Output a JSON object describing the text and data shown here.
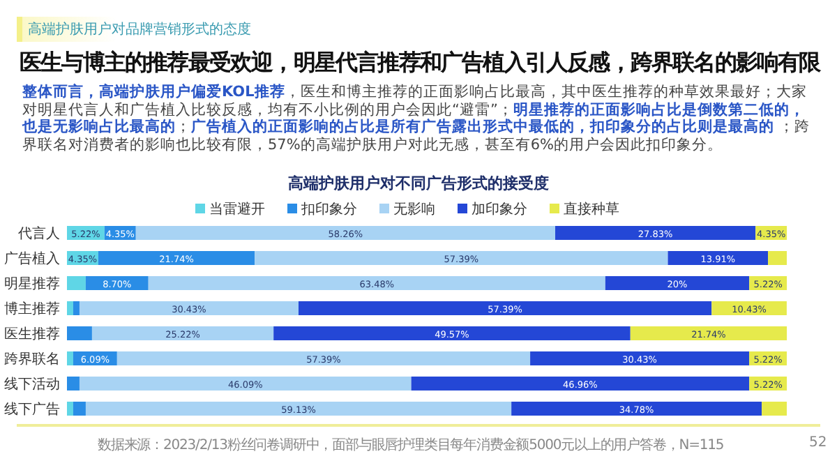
{
  "chart_data": {
    "type": "bar",
    "orientation": "horizontal",
    "stacked": true,
    "legend": "top",
    "tick_labels": "y",
    "xlim": [
      0,
      100
    ],
    "title": "高端护肤用户对不同广告形式的接受度",
    "subtitle": "高端护肤用户对品牌营销形式的态度",
    "annotations": [
      "医生与博主的推荐最受欢迎，明星代言推荐和广告植入引人反感，跨界联名的影响有限",
      "**整体而言，高端护肤用户偏爱KOL推荐**，医生和博主推荐的正面影响占比最高，其中医生推荐的种草效果最好；大家对明星代言人和广告植入比较反感，均有不小比例的用户会因此“避雷”；**明星推荐的正面影响占比是倒数第二低的，也是无影响占比最高的**；**广告植入的正面影响的占比是所有广告露出形式中最低的，扣印象分的占比则是最高的** ；跨界联名对消费者的影响也比较有限，57%的高端护肤用户对此无感，甚至有6%的用户会因此扣印象分。",
      "数据来源：2023/2/13粉丝问卷调研中，面部与眼唇护理类目每年消费金额5000元以上的用户答卷，N=115",
      "52"
    ],
    "categories": [
      "代言人",
      "广告植入",
      "明星推荐",
      "博主推荐",
      "医生推荐",
      "跨界联名",
      "线下活动",
      "线下广告"
    ],
    "series": [
      {
        "name": "当雷避开",
        "color": "#5fd6e6",
        "values": [
          5.22,
          4.35,
          2.61,
          0.87,
          0,
          0.87,
          0,
          0.87
        ],
        "value_labels": [
          "5.22%",
          "4.35%",
          null,
          null,
          null,
          null,
          null,
          null
        ]
      },
      {
        "name": "扣印象分",
        "color": "#2a8de6",
        "values": [
          4.35,
          21.74,
          8.7,
          0.87,
          3.48,
          6.09,
          1.74,
          1.74
        ],
        "value_labels": [
          "4.35%",
          "21.74%",
          "8.70%",
          null,
          null,
          "6.09%",
          null,
          null
        ]
      },
      {
        "name": "无影响",
        "color": "#a8d3f4",
        "values": [
          58.26,
          57.39,
          63.48,
          30.43,
          25.22,
          57.39,
          46.09,
          59.13
        ],
        "value_labels": [
          "58.26%",
          "57.39%",
          "63.48%",
          "30.43%",
          "25.22%",
          "57.39%",
          "46.09%",
          "59.13%"
        ]
      },
      {
        "name": "加印象分",
        "color": "#2447d6",
        "values": [
          27.83,
          13.91,
          20,
          57.39,
          49.57,
          30.43,
          46.96,
          34.78
        ],
        "value_labels": [
          "27.83%",
          "13.91%",
          "20%",
          "57.39%",
          "49.57%",
          "30.43%",
          "46.96%",
          "34.78%"
        ]
      },
      {
        "name": "直接种草",
        "color": "#e6ea4c",
        "values": [
          4.35,
          2.61,
          5.22,
          10.43,
          21.74,
          5.22,
          5.22,
          3.48
        ],
        "value_labels": [
          "4.35%",
          null,
          "5.22%",
          "10.43%",
          "21.74%",
          "5.22%",
          "5.22%",
          null
        ]
      }
    ]
  }
}
